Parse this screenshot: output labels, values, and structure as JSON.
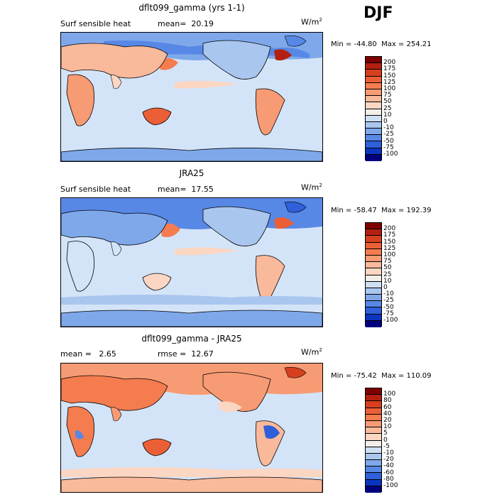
{
  "season": "DJF",
  "panels": [
    {
      "title": "dflt099_gamma (yrs 1-1)",
      "left_label": "Surf sensible heat",
      "stat_label": "mean=  20.19",
      "units": "W/m",
      "units_exp": "2",
      "minmax": "Min = -44.80  Max = 254.21",
      "colorbar": {
        "levels": [
          "200",
          "175",
          "150",
          "125",
          "100",
          "75",
          "50",
          "25",
          "10",
          "0",
          "-10",
          "-25",
          "-50",
          "-75",
          "-100"
        ],
        "colors": [
          "#7f0000",
          "#b3200f",
          "#d7401e",
          "#eb5f36",
          "#f47c4f",
          "#f79b74",
          "#f9b99b",
          "#fbd6c2",
          "#f4eee9",
          "#cfe0f5",
          "#a9c6ef",
          "#7fa8ea",
          "#5888e6",
          "#2f5fd9",
          "#0b34c1",
          "#00007f"
        ]
      }
    },
    {
      "title": "JRA25",
      "left_label": "Surf sensible heat",
      "stat_label": "mean=  17.55",
      "units": "W/m",
      "units_exp": "2",
      "minmax": "Min = -58.47  Max = 192.39",
      "colorbar": {
        "levels": [
          "200",
          "175",
          "150",
          "125",
          "100",
          "75",
          "50",
          "25",
          "10",
          "0",
          "-10",
          "-25",
          "-50",
          "-75",
          "-100"
        ],
        "colors": [
          "#7f0000",
          "#b3200f",
          "#d7401e",
          "#eb5f36",
          "#f47c4f",
          "#f79b74",
          "#f9b99b",
          "#fbd6c2",
          "#f4eee9",
          "#cfe0f5",
          "#a9c6ef",
          "#7fa8ea",
          "#5888e6",
          "#2f5fd9",
          "#0b34c1",
          "#00007f"
        ]
      }
    },
    {
      "title": "dflt099_gamma - JRA25",
      "left_label": "mean =   2.65",
      "stat_label": "rmse =  12.67",
      "units": "W/m",
      "units_exp": "2",
      "minmax": "Min = -75.42  Max = 110.09",
      "colorbar": {
        "levels": [
          "100",
          "80",
          "60",
          "40",
          "20",
          "10",
          "5",
          "0",
          "-5",
          "-10",
          "-20",
          "-40",
          "-60",
          "-80",
          "-100"
        ],
        "colors": [
          "#7f0000",
          "#b3200f",
          "#d7401e",
          "#eb5f36",
          "#f47c4f",
          "#f79b74",
          "#f9b99b",
          "#fbd6c2",
          "#f4eee9",
          "#cfe0f5",
          "#a9c6ef",
          "#7fa8ea",
          "#5888e6",
          "#2f5fd9",
          "#0b34c1",
          "#00007f"
        ]
      }
    }
  ]
}
